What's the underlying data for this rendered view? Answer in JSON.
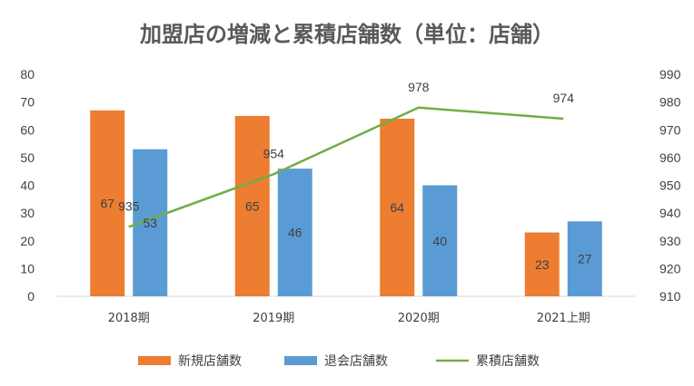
{
  "chart_data": {
    "type": "bar",
    "title": "加盟店の増減と累積店舗数（単位：店舗）",
    "categories": [
      "2018期",
      "2019期",
      "2020期",
      "2021上期"
    ],
    "series": [
      {
        "name": "新規店舗数",
        "type": "bar",
        "axis": "left",
        "color": "#ED7D31",
        "values": [
          67,
          65,
          64,
          23
        ]
      },
      {
        "name": "退会店舗数",
        "type": "bar",
        "axis": "left",
        "color": "#5B9BD5",
        "values": [
          53,
          46,
          40,
          27
        ]
      },
      {
        "name": "累積店舗数",
        "type": "line",
        "axis": "right",
        "color": "#70AD47",
        "values": [
          935,
          954,
          978,
          974
        ]
      }
    ],
    "y_left": {
      "min": 0,
      "max": 80,
      "step": 10
    },
    "y_right": {
      "min": 910,
      "max": 990,
      "step": 10
    },
    "legend_position": "bottom",
    "grid": false
  }
}
